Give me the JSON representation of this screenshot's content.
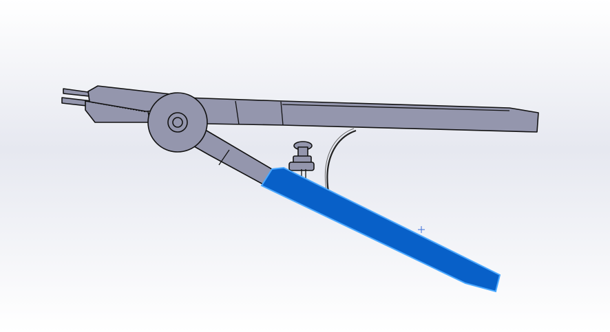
{
  "viewport": {
    "background_top": "#ffffff",
    "background_mid": "#e6e8f0",
    "background_bottom": "#ffffff"
  },
  "model": {
    "part_color": "#9496ad",
    "part_shade": "#7f819a",
    "edge_color": "#111111",
    "selected_color": "#0860c8",
    "selected_edge": "#4aa8ff",
    "spring_color": "#222222"
  },
  "cursor": {
    "icon": "crosshair-icon",
    "color": "#3a6fd8"
  }
}
